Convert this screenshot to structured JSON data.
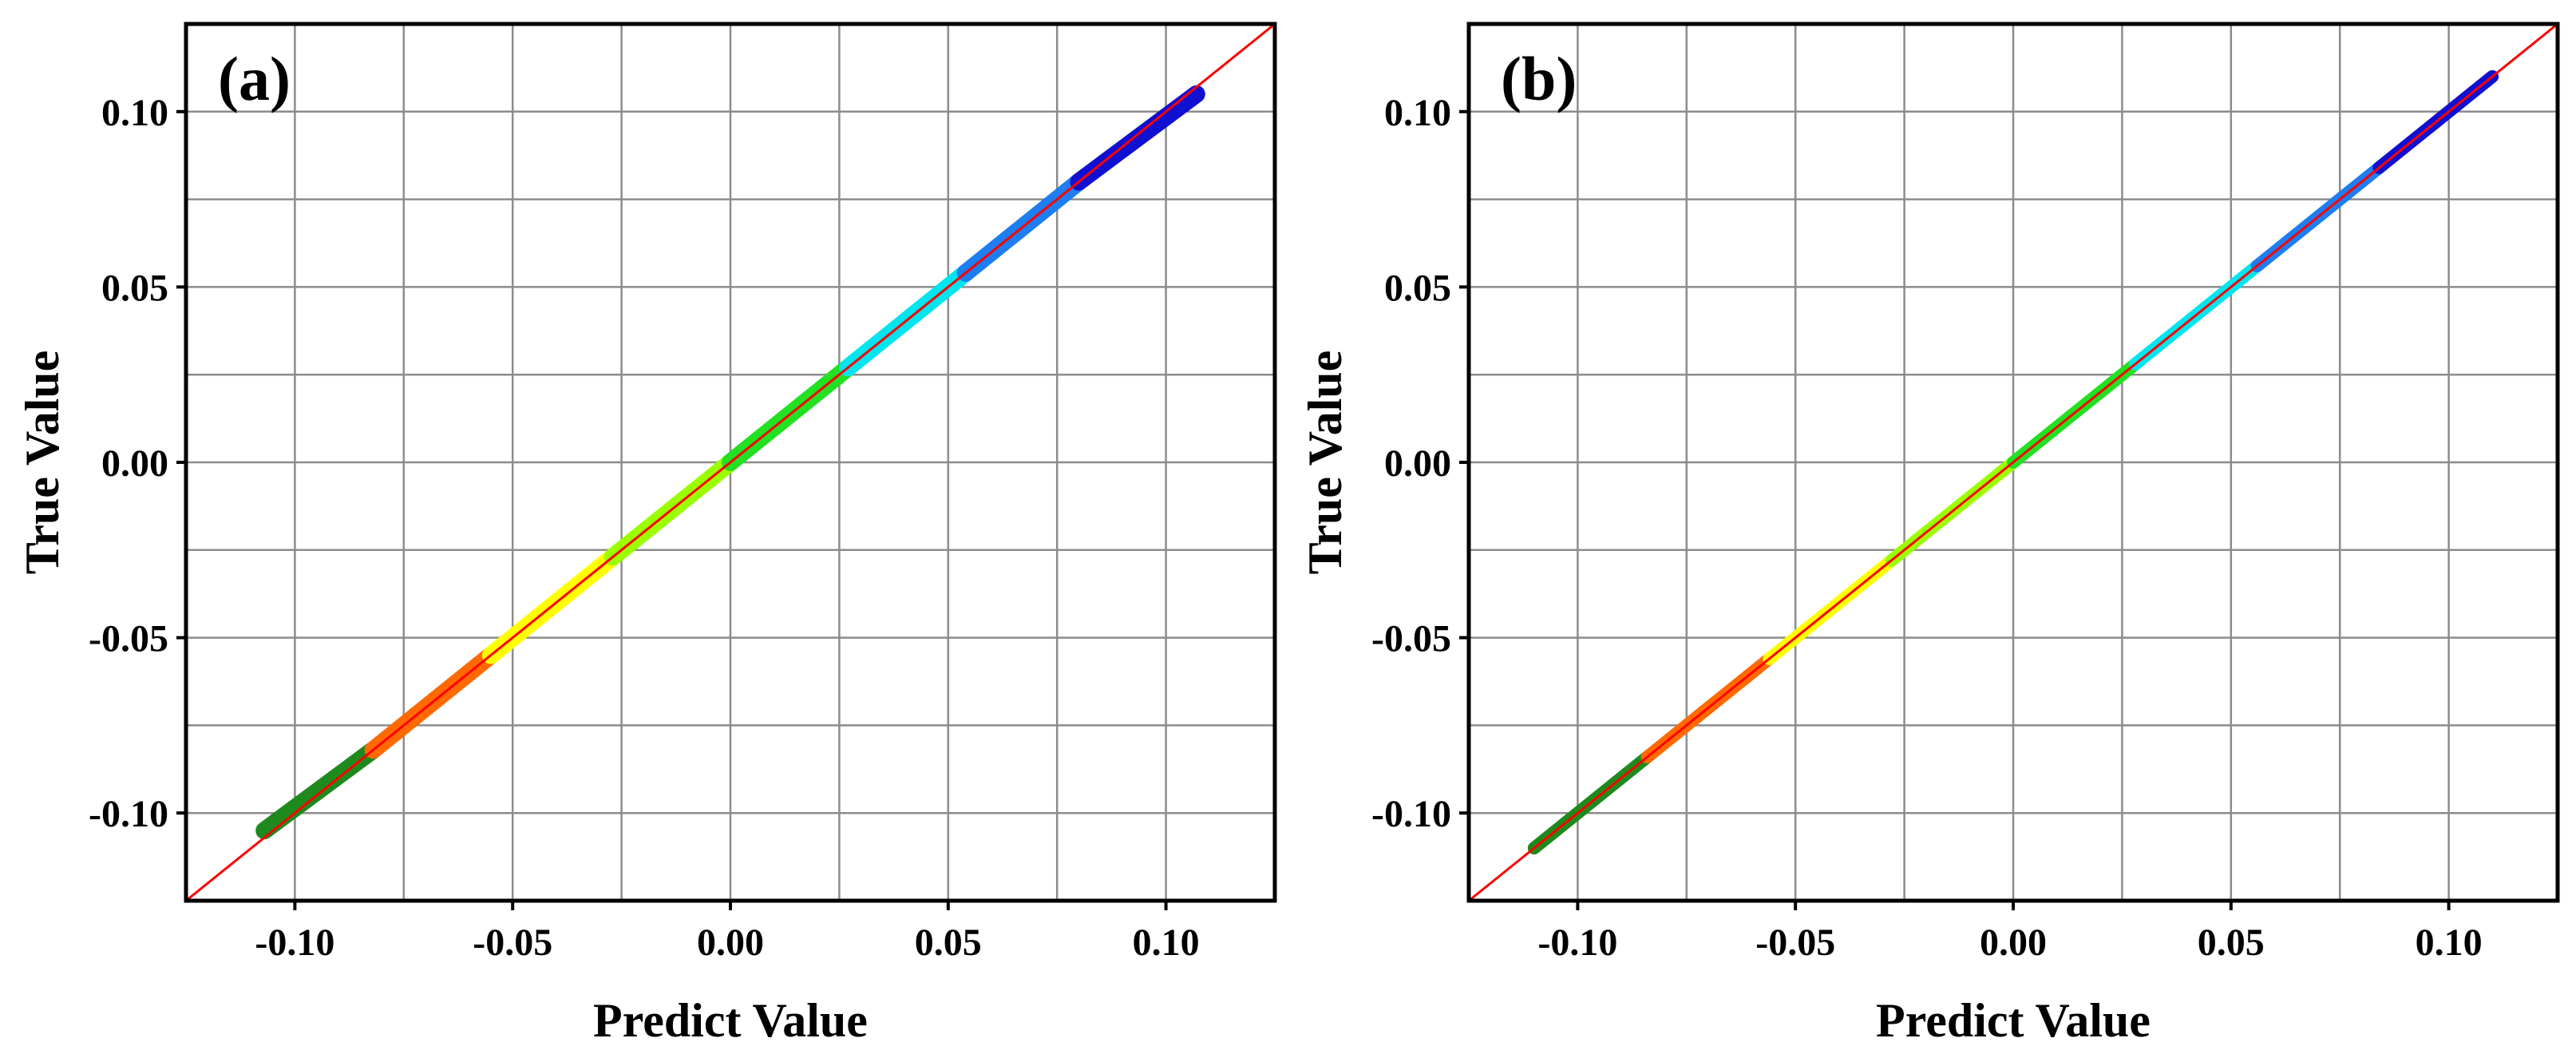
{
  "chart_data": [
    {
      "type": "scatter",
      "panel_label": "(a)",
      "xlabel": "Predict Value",
      "ylabel": "True Value",
      "xlim": [
        -0.125,
        0.125
      ],
      "ylim": [
        -0.125,
        0.125
      ],
      "xticks": [
        -0.1,
        -0.05,
        0.0,
        0.05,
        0.1
      ],
      "yticks": [
        -0.1,
        -0.05,
        0.0,
        0.05,
        0.1
      ],
      "xtick_labels": [
        "-0.10",
        "-0.05",
        "0.00",
        "0.05",
        "0.10"
      ],
      "ytick_labels": [
        "-0.10",
        "-0.05",
        "0.00",
        "0.05",
        "0.10"
      ],
      "grid": true,
      "reference_line": {
        "name": "y = x",
        "color": "#ff0000"
      },
      "series": [
        {
          "name": "dark-green",
          "color": "#1e8a1e",
          "x_range": [
            -0.107,
            -0.082
          ],
          "y_range": [
            -0.105,
            -0.082
          ]
        },
        {
          "name": "orange",
          "color": "#ff6a00",
          "x_range": [
            -0.082,
            -0.055
          ],
          "y_range": [
            -0.082,
            -0.055
          ]
        },
        {
          "name": "yellow",
          "color": "#ffff00",
          "x_range": [
            -0.055,
            -0.027
          ],
          "y_range": [
            -0.055,
            -0.027
          ]
        },
        {
          "name": "light-green",
          "color": "#9aff00",
          "x_range": [
            -0.027,
            0.0
          ],
          "y_range": [
            -0.027,
            0.0
          ]
        },
        {
          "name": "green",
          "color": "#22e022",
          "x_range": [
            0.0,
            0.027
          ],
          "y_range": [
            0.0,
            0.027
          ]
        },
        {
          "name": "cyan",
          "color": "#00e5ee",
          "x_range": [
            0.027,
            0.054
          ],
          "y_range": [
            0.027,
            0.054
          ]
        },
        {
          "name": "light-blue",
          "color": "#1e7df0",
          "x_range": [
            0.054,
            0.08
          ],
          "y_range": [
            0.054,
            0.08
          ]
        },
        {
          "name": "blue",
          "color": "#1010d0",
          "x_range": [
            0.08,
            0.107
          ],
          "y_range": [
            0.08,
            0.105
          ]
        }
      ]
    },
    {
      "type": "scatter",
      "panel_label": "(b)",
      "xlabel": "Predict Value",
      "ylabel": "True Value",
      "xlim": [
        -0.125,
        0.125
      ],
      "ylim": [
        -0.125,
        0.125
      ],
      "xticks": [
        -0.1,
        -0.05,
        0.0,
        0.05,
        0.1
      ],
      "yticks": [
        -0.1,
        -0.05,
        0.0,
        0.05,
        0.1
      ],
      "xtick_labels": [
        "-0.10",
        "-0.05",
        "0.00",
        "0.05",
        "0.10"
      ],
      "ytick_labels": [
        "-0.10",
        "-0.05",
        "0.00",
        "0.05",
        "0.10"
      ],
      "grid": true,
      "reference_line": {
        "name": "y = x",
        "color": "#ff0000"
      },
      "series": [
        {
          "name": "dark-green",
          "color": "#1e8a1e",
          "x_range": [
            -0.11,
            -0.084
          ],
          "y_range": [
            -0.11,
            -0.084
          ]
        },
        {
          "name": "orange",
          "color": "#ff6a00",
          "x_range": [
            -0.084,
            -0.056
          ],
          "y_range": [
            -0.084,
            -0.056
          ]
        },
        {
          "name": "yellow",
          "color": "#ffff00",
          "x_range": [
            -0.056,
            -0.028
          ],
          "y_range": [
            -0.056,
            -0.028
          ]
        },
        {
          "name": "light-green",
          "color": "#9aff00",
          "x_range": [
            -0.028,
            0.0
          ],
          "y_range": [
            -0.028,
            0.0
          ]
        },
        {
          "name": "green",
          "color": "#22e022",
          "x_range": [
            0.0,
            0.028
          ],
          "y_range": [
            0.0,
            0.028
          ]
        },
        {
          "name": "cyan",
          "color": "#00e5ee",
          "x_range": [
            0.028,
            0.056
          ],
          "y_range": [
            0.028,
            0.056
          ]
        },
        {
          "name": "light-blue",
          "color": "#1e7df0",
          "x_range": [
            0.056,
            0.084
          ],
          "y_range": [
            0.056,
            0.084
          ]
        },
        {
          "name": "blue",
          "color": "#1010d0",
          "x_range": [
            0.084,
            0.11
          ],
          "y_range": [
            0.084,
            0.11
          ]
        }
      ]
    }
  ]
}
